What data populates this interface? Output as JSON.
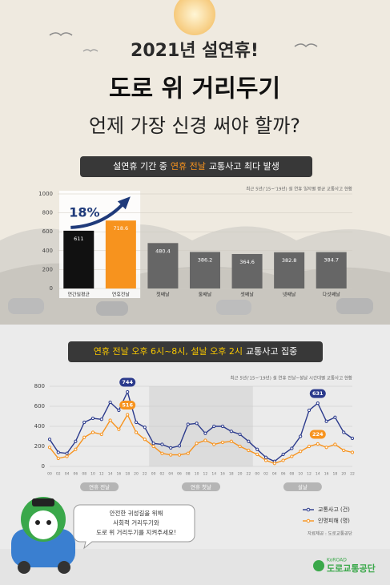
{
  "header": {
    "year_title": "2021년 설연휴!",
    "title": "도로 위 거리두기",
    "subtitle": "언제 가장 신경 써야 할까?"
  },
  "chart_data": [
    {
      "type": "bar",
      "title_parts": [
        "설연휴 기간 중",
        "연휴 전날",
        "교통사고 최다 발생"
      ],
      "note": "최근 5년('15~'19년) 설 연휴 일자별 평균 교통사고 현황",
      "categories": [
        "연간일평균",
        "연휴전날",
        "첫째날",
        "둘째날",
        "셋째날",
        "넷째날",
        "다섯째날"
      ],
      "values": [
        611,
        718.6,
        480.4,
        386.2,
        364.6,
        382.8,
        384.7
      ],
      "colors": [
        "#111111",
        "#f7931e",
        "#666666",
        "#666666",
        "#666666",
        "#666666",
        "#666666"
      ],
      "annotation": "18%",
      "ylim": [
        0,
        1000
      ],
      "yticks": [
        0,
        200,
        400,
        600,
        800,
        1000
      ]
    },
    {
      "type": "line",
      "title_parts": [
        "연휴 전날 오후 6시~8시, 설날 오후 2시",
        "교통사고 집중"
      ],
      "note": "최근 5년('15~'19년) 설 연휴 전날~설날 시간대별 교통사고 현황",
      "categories": [
        "00",
        "02",
        "04",
        "06",
        "08",
        "10",
        "12",
        "14",
        "16",
        "18",
        "20",
        "22",
        "00",
        "02",
        "04",
        "06",
        "08",
        "10",
        "12",
        "14",
        "16",
        "18",
        "20",
        "22",
        "00",
        "02",
        "04",
        "06",
        "08",
        "10",
        "12",
        "14",
        "16",
        "18",
        "20",
        "22"
      ],
      "x_groups": [
        "연휴 전날",
        "연휴 첫날",
        "설날"
      ],
      "series": [
        {
          "name": "교통사고 (건)",
          "color": "#2b3a8c",
          "values": [
            270,
            140,
            130,
            250,
            440,
            480,
            470,
            640,
            560,
            744,
            440,
            390,
            230,
            220,
            185,
            205,
            420,
            430,
            330,
            400,
            400,
            350,
            320,
            250,
            170,
            90,
            50,
            120,
            180,
            300,
            560,
            631,
            450,
            490,
            340,
            280
          ],
          "value_labels": [
            null,
            null,
            null,
            null,
            null,
            null,
            null,
            null,
            null,
            "744",
            null,
            null,
            null,
            null,
            null,
            null,
            null,
            null,
            null,
            null,
            null,
            null,
            null,
            null,
            null,
            null,
            null,
            null,
            null,
            null,
            null,
            "631",
            null,
            null,
            null,
            null
          ]
        },
        {
          "name": "인명피해 (명)",
          "color": "#f7931e",
          "values": [
            190,
            80,
            100,
            170,
            290,
            340,
            320,
            460,
            370,
            516,
            340,
            270,
            200,
            130,
            115,
            115,
            130,
            230,
            260,
            220,
            240,
            250,
            200,
            160,
            120,
            60,
            30,
            60,
            100,
            150,
            200,
            224,
            190,
            220,
            160,
            140
          ],
          "value_labels": [
            null,
            null,
            null,
            null,
            null,
            null,
            null,
            null,
            null,
            "516",
            null,
            null,
            null,
            null,
            null,
            null,
            null,
            null,
            null,
            null,
            null,
            null,
            null,
            null,
            null,
            null,
            null,
            null,
            null,
            null,
            null,
            "224",
            null,
            null,
            null,
            null
          ]
        }
      ],
      "source": "자료제공 : 도로교통공단",
      "ylim": [
        0,
        800
      ],
      "yticks": [
        0,
        200,
        400,
        600,
        800
      ]
    }
  ],
  "footer": {
    "bubble": [
      "안전한 귀성길을 위해",
      "사회적 거리두기와",
      "도로 위 거리두기를 지켜주세요!"
    ],
    "logo_en": "KoROAD",
    "logo": "도로교통공단"
  }
}
